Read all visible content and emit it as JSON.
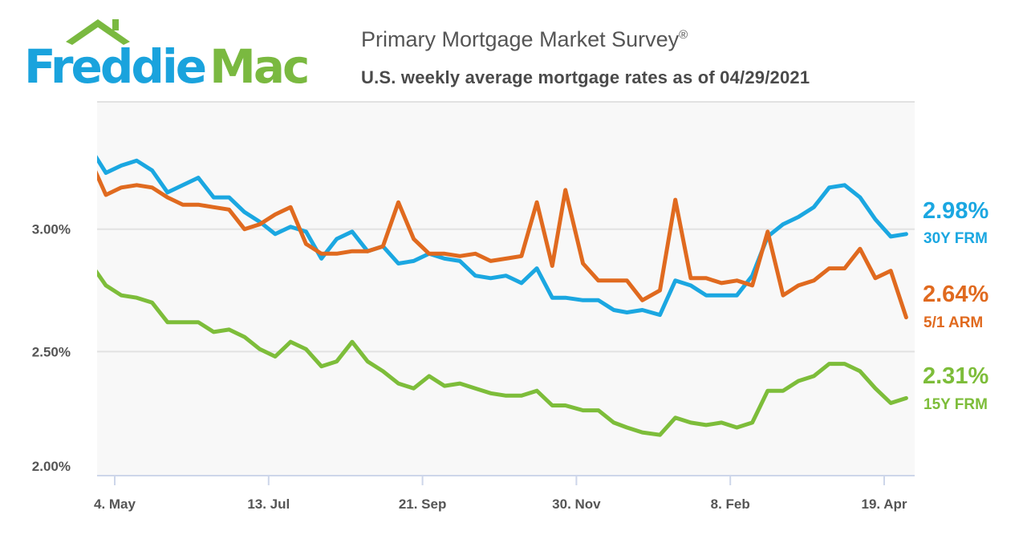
{
  "logo": {
    "text_part1": "Freddie",
    "text_part2": "Mac",
    "color1": "#1aa3dd",
    "color2": "#7ab940"
  },
  "header": {
    "title": "Primary Mortgage Market Survey",
    "title_mark": "®",
    "subtitle": "U.S. weekly average mortgage rates as of 04/29/2021"
  },
  "chart_data": {
    "type": "line",
    "title": "Primary Mortgage Market Survey®",
    "subtitle": "U.S. weekly average mortgage rates as of 04/29/2021",
    "xlabel": "",
    "ylabel": "",
    "ylim": [
      2.0,
      3.52
    ],
    "xlim": [
      "2020-04-25",
      "2021-05-01"
    ],
    "grid": true,
    "y_ticks": [
      {
        "value": 3.0,
        "label": "3.00%"
      },
      {
        "value": 2.5,
        "label": "2.50%"
      },
      {
        "value": 2.0,
        "label": "2.00%"
      }
    ],
    "x_ticks": [
      {
        "date": "2020-05-04",
        "label": "4. May"
      },
      {
        "date": "2020-07-13",
        "label": "13. Jul"
      },
      {
        "date": "2020-09-21",
        "label": "21. Sep"
      },
      {
        "date": "2020-11-30",
        "label": "30. Nov"
      },
      {
        "date": "2021-02-08",
        "label": "8. Feb"
      },
      {
        "date": "2021-04-19",
        "label": "19. Apr"
      }
    ],
    "x": [
      "2020-04-23",
      "2020-04-30",
      "2020-05-07",
      "2020-05-14",
      "2020-05-21",
      "2020-05-28",
      "2020-06-04",
      "2020-06-11",
      "2020-06-18",
      "2020-06-25",
      "2020-07-02",
      "2020-07-09",
      "2020-07-16",
      "2020-07-23",
      "2020-07-30",
      "2020-08-06",
      "2020-08-13",
      "2020-08-20",
      "2020-08-27",
      "2020-09-03",
      "2020-09-10",
      "2020-09-17",
      "2020-09-24",
      "2020-10-01",
      "2020-10-08",
      "2020-10-15",
      "2020-10-22",
      "2020-10-29",
      "2020-11-05",
      "2020-11-12",
      "2020-11-19",
      "2020-11-25",
      "2020-12-03",
      "2020-12-10",
      "2020-12-17",
      "2020-12-23",
      "2020-12-30",
      "2021-01-07",
      "2021-01-14",
      "2021-01-21",
      "2021-01-28",
      "2021-02-04",
      "2021-02-11",
      "2021-02-18",
      "2021-02-25",
      "2021-03-04",
      "2021-03-11",
      "2021-03-18",
      "2021-03-25",
      "2021-04-01",
      "2021-04-08",
      "2021-04-15",
      "2021-04-22",
      "2021-04-29"
    ],
    "series": [
      {
        "name": "30Y FRM",
        "latest": "2.98%",
        "color": "#1ba7e1",
        "values": [
          3.33,
          3.23,
          3.26,
          3.28,
          3.24,
          3.15,
          3.18,
          3.21,
          3.13,
          3.13,
          3.07,
          3.03,
          2.98,
          3.01,
          2.99,
          2.88,
          2.96,
          2.99,
          2.91,
          2.93,
          2.86,
          2.87,
          2.9,
          2.88,
          2.87,
          2.81,
          2.8,
          2.81,
          2.78,
          2.84,
          2.72,
          2.72,
          2.71,
          2.71,
          2.67,
          2.66,
          2.67,
          2.65,
          2.79,
          2.77,
          2.73,
          2.73,
          2.73,
          2.81,
          2.97,
          3.02,
          3.05,
          3.09,
          3.17,
          3.18,
          3.13,
          3.04,
          2.97,
          2.98
        ]
      },
      {
        "name": "5/1 ARM",
        "latest": "2.64%",
        "color": "#e06a1f",
        "values": [
          3.28,
          3.14,
          3.17,
          3.18,
          3.17,
          3.13,
          3.1,
          3.1,
          3.09,
          3.08,
          3.0,
          3.02,
          3.06,
          3.09,
          2.94,
          2.9,
          2.9,
          2.91,
          2.91,
          2.93,
          3.11,
          2.96,
          2.9,
          2.9,
          2.89,
          2.9,
          2.87,
          2.88,
          2.89,
          3.11,
          2.85,
          3.16,
          2.86,
          2.79,
          2.79,
          2.79,
          2.71,
          2.75,
          3.12,
          2.8,
          2.8,
          2.78,
          2.79,
          2.77,
          2.99,
          2.73,
          2.77,
          2.79,
          2.84,
          2.84,
          2.92,
          2.8,
          2.83,
          2.64
        ]
      },
      {
        "name": "15Y FRM",
        "latest": "2.31%",
        "color": "#7dbd3a",
        "values": [
          2.86,
          2.77,
          2.73,
          2.72,
          2.7,
          2.62,
          2.62,
          2.62,
          2.58,
          2.59,
          2.56,
          2.51,
          2.48,
          2.54,
          2.51,
          2.44,
          2.46,
          2.54,
          2.46,
          2.42,
          2.37,
          2.35,
          2.4,
          2.36,
          2.37,
          2.35,
          2.33,
          2.32,
          2.32,
          2.34,
          2.28,
          2.28,
          2.26,
          2.26,
          2.21,
          2.19,
          2.17,
          2.16,
          2.23,
          2.21,
          2.2,
          2.21,
          2.19,
          2.21,
          2.34,
          2.34,
          2.38,
          2.4,
          2.45,
          2.45,
          2.42,
          2.35,
          2.29,
          2.31
        ]
      }
    ]
  }
}
